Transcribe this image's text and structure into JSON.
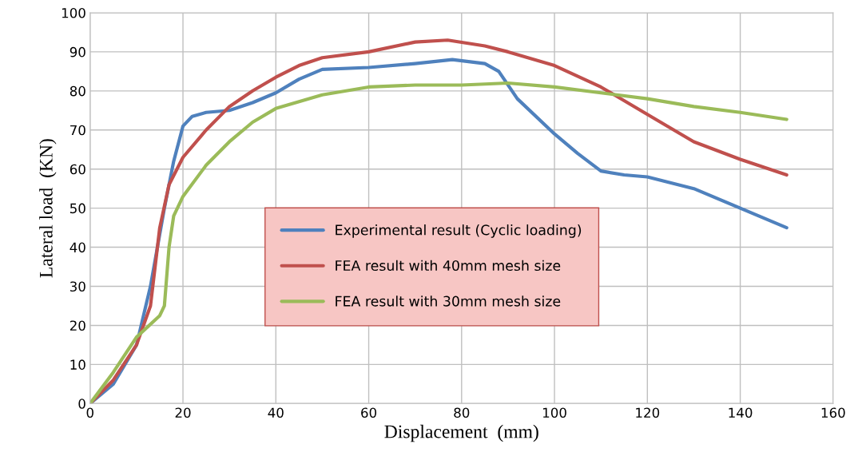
{
  "chart_data": {
    "type": "line",
    "xlabel": "Displacement  (mm)",
    "ylabel": "Lateral load  (KN)",
    "xlim": [
      0,
      160
    ],
    "xticks": [
      0,
      20,
      40,
      60,
      80,
      100,
      120,
      140,
      160
    ],
    "ylim": [
      0,
      100
    ],
    "yticks": [
      0,
      10,
      20,
      30,
      40,
      50,
      60,
      70,
      80,
      90,
      100
    ],
    "grid": true,
    "legend": "center",
    "marker": "none",
    "line_style": "solid",
    "series": [
      {
        "name": "Experimental result (Cyclic loading)",
        "color": "#4f81bd",
        "x": [
          0,
          5,
          10,
          13,
          16,
          18,
          20,
          22,
          25,
          30,
          35,
          40,
          45,
          50,
          60,
          70,
          78,
          85,
          88,
          92,
          100,
          105,
          110,
          115,
          120,
          130,
          140,
          150
        ],
        "values": [
          0,
          5,
          15,
          30,
          50,
          62,
          71,
          73.5,
          74.5,
          75,
          77,
          79.5,
          83,
          85.5,
          86,
          87,
          88,
          87,
          85,
          78,
          69,
          64,
          59.5,
          58.5,
          58,
          55,
          50,
          45
        ]
      },
      {
        "name": "FEA result with 40mm mesh size",
        "color": "#c0504d",
        "x": [
          0,
          5,
          10,
          13,
          15,
          17,
          20,
          25,
          30,
          35,
          40,
          45,
          50,
          60,
          70,
          77,
          85,
          90,
          100,
          110,
          120,
          130,
          140,
          150
        ],
        "values": [
          0,
          6,
          15,
          25,
          45,
          56,
          63,
          70,
          76,
          80,
          83.5,
          86.5,
          88.5,
          90,
          92.5,
          93,
          91.5,
          90,
          86.5,
          81,
          74,
          67,
          62.5,
          58.5
        ]
      },
      {
        "name": "FEA result with 30mm mesh size",
        "color": "#9bbb59",
        "x": [
          0,
          5,
          10,
          15,
          16,
          17,
          18,
          20,
          25,
          30,
          35,
          40,
          50,
          60,
          70,
          80,
          90,
          100,
          110,
          120,
          130,
          140,
          150
        ],
        "values": [
          0,
          8,
          17,
          22.5,
          25,
          40,
          48,
          53,
          61,
          67,
          72,
          75.5,
          79,
          81,
          81.5,
          81.5,
          82,
          81,
          79.5,
          78,
          76,
          74.5,
          72.7
        ]
      }
    ]
  }
}
